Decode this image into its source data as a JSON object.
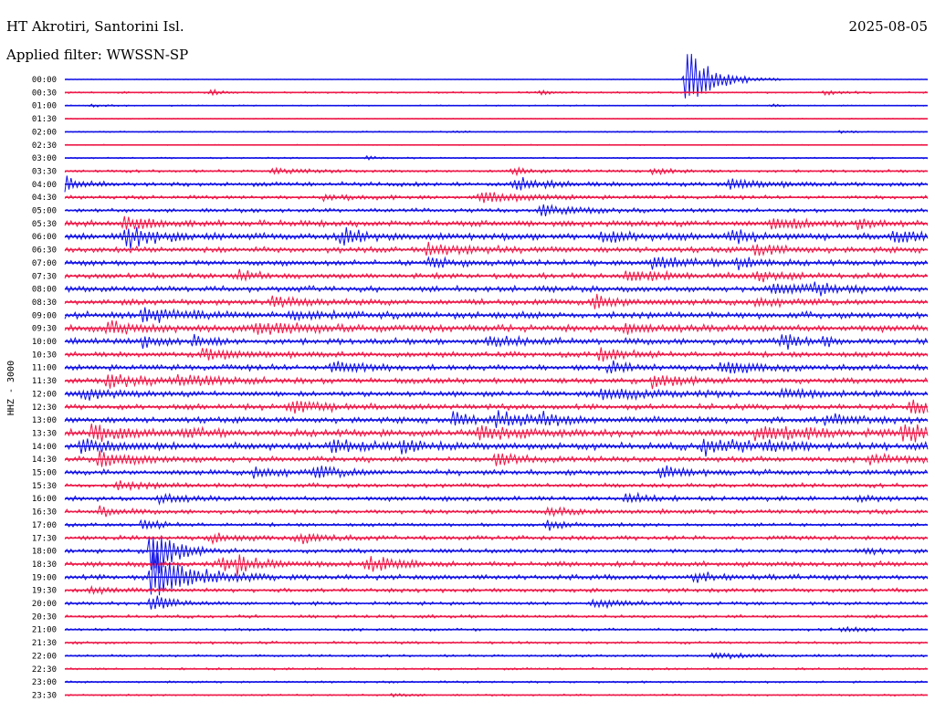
{
  "header": {
    "station": "HT Akrotiri, Santorini Isl.",
    "date": "2025-08-05",
    "filter": "Applied filter: WWSSN-SP"
  },
  "chart_data": {
    "type": "line",
    "title": "HT Akrotiri, Santorini Isl.",
    "ylabel": "HHZ - 3000",
    "colors": [
      "#1010e6",
      "#ee1848"
    ],
    "grid": false,
    "rows": [
      {
        "label": "00:00",
        "noise": 0.3,
        "events": [
          {
            "t": 0.72,
            "amp": 35,
            "dur": 0.03
          }
        ]
      },
      {
        "label": "00:30",
        "noise": 0.8,
        "events": [
          {
            "t": 0.17,
            "amp": 4,
            "dur": 0.01
          },
          {
            "t": 0.55,
            "amp": 2,
            "dur": 0.02
          },
          {
            "t": 0.88,
            "amp": 2,
            "dur": 0.02
          }
        ]
      },
      {
        "label": "01:00",
        "noise": 0.5,
        "events": [
          {
            "t": 0.03,
            "amp": 1.5,
            "dur": 0.02
          },
          {
            "t": 0.82,
            "amp": 1.5,
            "dur": 0.01
          }
        ]
      },
      {
        "label": "01:30",
        "noise": 0.4,
        "events": []
      },
      {
        "label": "02:00",
        "noise": 0.6,
        "events": [
          {
            "t": 0.45,
            "amp": 1.5,
            "dur": 0.01
          },
          {
            "t": 0.9,
            "amp": 2,
            "dur": 0.01
          }
        ]
      },
      {
        "label": "02:30",
        "noise": 0.4,
        "events": []
      },
      {
        "label": "03:00",
        "noise": 0.7,
        "events": [
          {
            "t": 0.35,
            "amp": 1.5,
            "dur": 0.02
          }
        ]
      },
      {
        "label": "03:30",
        "noise": 1.3,
        "events": [
          {
            "t": 0.24,
            "amp": 3,
            "dur": 0.03
          },
          {
            "t": 0.52,
            "amp": 4,
            "dur": 0.02
          },
          {
            "t": 0.68,
            "amp": 3,
            "dur": 0.03
          }
        ]
      },
      {
        "label": "04:00",
        "noise": 2.0,
        "events": [
          {
            "t": 0.0,
            "amp": 8,
            "dur": 0.02
          },
          {
            "t": 0.52,
            "amp": 8,
            "dur": 0.03
          },
          {
            "t": 0.77,
            "amp": 6,
            "dur": 0.03
          }
        ]
      },
      {
        "label": "04:30",
        "noise": 1.6,
        "events": [
          {
            "t": 0.48,
            "amp": 5,
            "dur": 0.06
          },
          {
            "t": 0.3,
            "amp": 3,
            "dur": 0.04
          }
        ]
      },
      {
        "label": "05:00",
        "noise": 1.8,
        "events": [
          {
            "t": 0.55,
            "amp": 6,
            "dur": 0.04
          }
        ]
      },
      {
        "label": "05:30",
        "noise": 2.8,
        "events": [
          {
            "t": 0.07,
            "amp": 7,
            "dur": 0.03
          },
          {
            "t": 0.82,
            "amp": 6,
            "dur": 0.04
          },
          {
            "t": 0.92,
            "amp": 5,
            "dur": 0.02
          }
        ]
      },
      {
        "label": "06:00",
        "noise": 3.0,
        "events": [
          {
            "t": 0.07,
            "amp": 14,
            "dur": 0.03
          },
          {
            "t": 0.32,
            "amp": 8,
            "dur": 0.03
          },
          {
            "t": 0.62,
            "amp": 6,
            "dur": 0.04
          },
          {
            "t": 0.77,
            "amp": 8,
            "dur": 0.02
          },
          {
            "t": 0.96,
            "amp": 6,
            "dur": 0.03
          }
        ]
      },
      {
        "label": "06:30",
        "noise": 2.6,
        "events": [
          {
            "t": 0.42,
            "amp": 6,
            "dur": 0.05
          },
          {
            "t": 0.8,
            "amp": 6,
            "dur": 0.03
          }
        ]
      },
      {
        "label": "07:00",
        "noise": 2.5,
        "events": [
          {
            "t": 0.42,
            "amp": 5,
            "dur": 0.03
          },
          {
            "t": 0.68,
            "amp": 7,
            "dur": 0.04
          },
          {
            "t": 0.78,
            "amp": 7,
            "dur": 0.02
          }
        ]
      },
      {
        "label": "07:30",
        "noise": 2.4,
        "events": [
          {
            "t": 0.2,
            "amp": 6,
            "dur": 0.02
          },
          {
            "t": 0.65,
            "amp": 6,
            "dur": 0.05
          },
          {
            "t": 0.8,
            "amp": 5,
            "dur": 0.03
          }
        ]
      },
      {
        "label": "08:00",
        "noise": 2.6,
        "events": [
          {
            "t": 0.82,
            "amp": 6,
            "dur": 0.04
          },
          {
            "t": 0.87,
            "amp": 5,
            "dur": 0.03
          }
        ]
      },
      {
        "label": "08:30",
        "noise": 2.6,
        "events": [
          {
            "t": 0.24,
            "amp": 6,
            "dur": 0.04
          },
          {
            "t": 0.61,
            "amp": 7,
            "dur": 0.03
          },
          {
            "t": 0.8,
            "amp": 5,
            "dur": 0.03
          }
        ]
      },
      {
        "label": "09:00",
        "noise": 3.0,
        "events": [
          {
            "t": 0.09,
            "amp": 8,
            "dur": 0.04
          },
          {
            "t": 0.26,
            "amp": 5,
            "dur": 0.03
          }
        ]
      },
      {
        "label": "09:30",
        "noise": 3.2,
        "events": [
          {
            "t": 0.05,
            "amp": 7,
            "dur": 0.04
          },
          {
            "t": 0.22,
            "amp": 6,
            "dur": 0.06
          },
          {
            "t": 0.65,
            "amp": 6,
            "dur": 0.02
          }
        ]
      },
      {
        "label": "10:00",
        "noise": 2.8,
        "events": [
          {
            "t": 0.09,
            "amp": 6,
            "dur": 0.02
          },
          {
            "t": 0.15,
            "amp": 6,
            "dur": 0.02
          },
          {
            "t": 0.49,
            "amp": 6,
            "dur": 0.04
          },
          {
            "t": 0.83,
            "amp": 9,
            "dur": 0.02
          },
          {
            "t": 0.88,
            "amp": 5,
            "dur": 0.01
          }
        ]
      },
      {
        "label": "10:30",
        "noise": 2.4,
        "events": [
          {
            "t": 0.16,
            "amp": 6,
            "dur": 0.04
          },
          {
            "t": 0.62,
            "amp": 7,
            "dur": 0.03
          }
        ]
      },
      {
        "label": "11:00",
        "noise": 2.6,
        "events": [
          {
            "t": 0.31,
            "amp": 7,
            "dur": 0.03
          },
          {
            "t": 0.63,
            "amp": 6,
            "dur": 0.02
          },
          {
            "t": 0.76,
            "amp": 9,
            "dur": 0.03
          }
        ]
      },
      {
        "label": "11:30",
        "noise": 2.6,
        "events": [
          {
            "t": 0.05,
            "amp": 7,
            "dur": 0.04
          },
          {
            "t": 0.68,
            "amp": 7,
            "dur": 0.03
          },
          {
            "t": 0.13,
            "amp": 5,
            "dur": 0.05
          }
        ]
      },
      {
        "label": "12:00",
        "noise": 2.6,
        "events": [
          {
            "t": 0.02,
            "amp": 6,
            "dur": 0.03
          },
          {
            "t": 0.62,
            "amp": 5,
            "dur": 0.06
          },
          {
            "t": 0.83,
            "amp": 5,
            "dur": 0.03
          }
        ]
      },
      {
        "label": "12:30",
        "noise": 2.6,
        "events": [
          {
            "t": 0.26,
            "amp": 6,
            "dur": 0.04
          },
          {
            "t": 0.98,
            "amp": 8,
            "dur": 0.03
          }
        ]
      },
      {
        "label": "13:00",
        "noise": 2.8,
        "events": [
          {
            "t": 0.45,
            "amp": 7,
            "dur": 0.02
          },
          {
            "t": 0.5,
            "amp": 9,
            "dur": 0.04
          },
          {
            "t": 0.55,
            "amp": 7,
            "dur": 0.02
          },
          {
            "t": 0.88,
            "amp": 6,
            "dur": 0.03
          }
        ]
      },
      {
        "label": "13:30",
        "noise": 3.2,
        "events": [
          {
            "t": 0.03,
            "amp": 8,
            "dur": 0.04
          },
          {
            "t": 0.14,
            "amp": 5,
            "dur": 0.02
          },
          {
            "t": 0.48,
            "amp": 7,
            "dur": 0.04
          },
          {
            "t": 0.8,
            "amp": 8,
            "dur": 0.06
          },
          {
            "t": 0.97,
            "amp": 8,
            "dur": 0.04
          }
        ]
      },
      {
        "label": "14:00",
        "noise": 3.2,
        "events": [
          {
            "t": 0.02,
            "amp": 7,
            "dur": 0.04
          },
          {
            "t": 0.31,
            "amp": 7,
            "dur": 0.03
          },
          {
            "t": 0.39,
            "amp": 8,
            "dur": 0.02
          },
          {
            "t": 0.74,
            "amp": 9,
            "dur": 0.04
          },
          {
            "t": 0.81,
            "amp": 7,
            "dur": 0.02
          }
        ]
      },
      {
        "label": "14:30",
        "noise": 2.6,
        "events": [
          {
            "t": 0.04,
            "amp": 7,
            "dur": 0.04
          },
          {
            "t": 0.5,
            "amp": 5,
            "dur": 0.03
          },
          {
            "t": 0.93,
            "amp": 5,
            "dur": 0.03
          }
        ]
      },
      {
        "label": "15:00",
        "noise": 2.4,
        "events": [
          {
            "t": 0.22,
            "amp": 6,
            "dur": 0.03
          },
          {
            "t": 0.29,
            "amp": 6,
            "dur": 0.03
          },
          {
            "t": 0.69,
            "amp": 10,
            "dur": 0.02
          }
        ]
      },
      {
        "label": "15:30",
        "noise": 2.0,
        "events": [
          {
            "t": 0.06,
            "amp": 4,
            "dur": 0.04
          }
        ]
      },
      {
        "label": "16:00",
        "noise": 2.2,
        "events": [
          {
            "t": 0.11,
            "amp": 5,
            "dur": 0.02
          },
          {
            "t": 0.65,
            "amp": 8,
            "dur": 0.02
          },
          {
            "t": 0.92,
            "amp": 4,
            "dur": 0.02
          }
        ]
      },
      {
        "label": "16:30",
        "noise": 2.0,
        "events": [
          {
            "t": 0.04,
            "amp": 6,
            "dur": 0.02
          },
          {
            "t": 0.56,
            "amp": 4,
            "dur": 0.03
          }
        ]
      },
      {
        "label": "17:00",
        "noise": 1.6,
        "events": [
          {
            "t": 0.09,
            "amp": 6,
            "dur": 0.02
          },
          {
            "t": 0.56,
            "amp": 5,
            "dur": 0.02
          }
        ]
      },
      {
        "label": "17:30",
        "noise": 2.0,
        "events": [
          {
            "t": 0.17,
            "amp": 5,
            "dur": 0.03
          },
          {
            "t": 0.27,
            "amp": 5,
            "dur": 0.03
          }
        ]
      },
      {
        "label": "18:00",
        "noise": 2.0,
        "events": [
          {
            "t": 0.1,
            "amp": 40,
            "dur": 0.02
          },
          {
            "t": 0.93,
            "amp": 3,
            "dur": 0.02
          }
        ]
      },
      {
        "label": "18:30",
        "noise": 2.4,
        "events": [
          {
            "t": 0.18,
            "amp": 6,
            "dur": 0.02
          },
          {
            "t": 0.2,
            "amp": 9,
            "dur": 0.03
          },
          {
            "t": 0.35,
            "amp": 9,
            "dur": 0.03
          }
        ]
      },
      {
        "label": "19:00",
        "noise": 2.4,
        "events": [
          {
            "t": 0.1,
            "amp": 30,
            "dur": 0.04
          },
          {
            "t": 0.73,
            "amp": 6,
            "dur": 0.02
          }
        ]
      },
      {
        "label": "19:30",
        "noise": 1.8,
        "events": [
          {
            "t": 0.03,
            "amp": 4,
            "dur": 0.03
          }
        ]
      },
      {
        "label": "20:00",
        "noise": 1.6,
        "events": [
          {
            "t": 0.1,
            "amp": 12,
            "dur": 0.02
          },
          {
            "t": 0.61,
            "amp": 4,
            "dur": 0.04
          }
        ]
      },
      {
        "label": "20:30",
        "noise": 1.4,
        "events": []
      },
      {
        "label": "21:00",
        "noise": 1.2,
        "events": [
          {
            "t": 0.9,
            "amp": 3,
            "dur": 0.02
          }
        ]
      },
      {
        "label": "21:30",
        "noise": 1.2,
        "events": []
      },
      {
        "label": "22:00",
        "noise": 1.1,
        "events": [
          {
            "t": 0.75,
            "amp": 5,
            "dur": 0.03
          }
        ]
      },
      {
        "label": "22:30",
        "noise": 1.0,
        "events": []
      },
      {
        "label": "23:00",
        "noise": 0.9,
        "events": []
      },
      {
        "label": "23:30",
        "noise": 0.8,
        "events": [
          {
            "t": 0.38,
            "amp": 2,
            "dur": 0.02
          }
        ]
      }
    ]
  }
}
